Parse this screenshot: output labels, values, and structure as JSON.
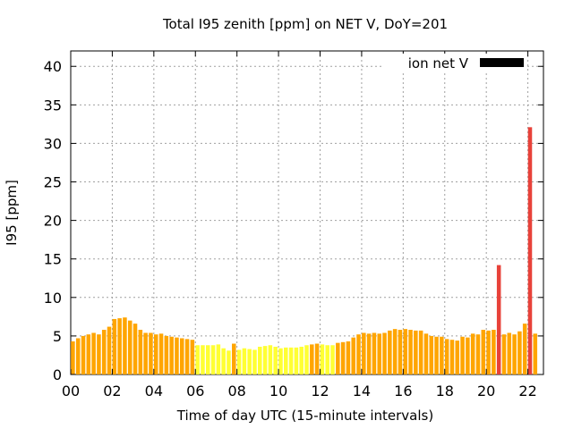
{
  "chart_data": {
    "type": "bar",
    "title": "Total I95 zenith [ppm] on NET V, DoY=201",
    "xlabel": "Time of day UTC (15-minute intervals)",
    "ylabel": "I95 [ppm]",
    "xlim": [
      0,
      22.75
    ],
    "ylim": [
      0,
      42
    ],
    "xticks": [
      "00",
      "02",
      "04",
      "06",
      "08",
      "10",
      "12",
      "14",
      "16",
      "18",
      "20",
      "22"
    ],
    "yticks": [
      "0",
      "5",
      "10",
      "15",
      "20",
      "25",
      "30",
      "35",
      "40"
    ],
    "grid": true,
    "legend": {
      "position": "top-right",
      "label": "ion net V",
      "color": "#000000"
    },
    "colors": {
      "low": "#ffff33",
      "mid": "#ffa500",
      "high": "#e8423a"
    },
    "interval_hours": 0.25,
    "values": [
      4.3,
      4.7,
      5.0,
      5.2,
      5.4,
      5.2,
      5.8,
      6.2,
      7.2,
      7.3,
      7.4,
      7.0,
      6.6,
      5.8,
      5.4,
      5.4,
      5.2,
      5.3,
      5.0,
      4.9,
      4.8,
      4.7,
      4.6,
      4.5,
      3.8,
      3.8,
      3.8,
      3.8,
      3.9,
      3.4,
      3.1,
      4.0,
      3.2,
      3.4,
      3.3,
      3.2,
      3.6,
      3.7,
      3.8,
      3.6,
      3.4,
      3.5,
      3.5,
      3.5,
      3.6,
      3.8,
      3.9,
      4.0,
      3.9,
      3.8,
      3.8,
      4.1,
      4.2,
      4.3,
      4.8,
      5.2,
      5.4,
      5.3,
      5.4,
      5.3,
      5.4,
      5.7,
      5.9,
      5.8,
      5.9,
      5.8,
      5.7,
      5.7,
      5.3,
      5.0,
      4.9,
      4.9,
      4.6,
      4.5,
      4.4,
      4.9,
      4.8,
      5.3,
      5.2,
      5.8,
      5.7,
      5.8,
      14.2,
      5.2,
      5.4,
      5.2,
      5.6,
      6.6,
      32.1,
      5.3
    ],
    "bar_colors": [
      "mid",
      "mid",
      "mid",
      "mid",
      "mid",
      "mid",
      "mid",
      "mid",
      "mid",
      "mid",
      "mid",
      "mid",
      "mid",
      "mid",
      "mid",
      "mid",
      "mid",
      "mid",
      "mid",
      "mid",
      "mid",
      "mid",
      "mid",
      "mid",
      "low",
      "low",
      "low",
      "low",
      "low",
      "low",
      "low",
      "mid",
      "low",
      "low",
      "low",
      "low",
      "low",
      "low",
      "low",
      "low",
      "low",
      "low",
      "low",
      "low",
      "low",
      "low",
      "mid",
      "mid",
      "low",
      "low",
      "low",
      "mid",
      "mid",
      "mid",
      "mid",
      "mid",
      "mid",
      "mid",
      "mid",
      "mid",
      "mid",
      "mid",
      "mid",
      "mid",
      "mid",
      "mid",
      "mid",
      "mid",
      "mid",
      "mid",
      "mid",
      "mid",
      "mid",
      "mid",
      "mid",
      "mid",
      "mid",
      "mid",
      "mid",
      "mid",
      "mid",
      "mid",
      "high",
      "mid",
      "mid",
      "mid",
      "mid",
      "mid",
      "high",
      "mid"
    ]
  }
}
